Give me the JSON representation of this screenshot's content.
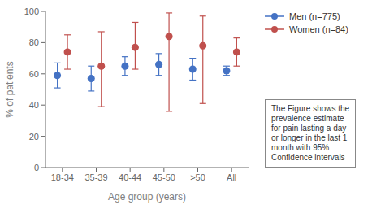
{
  "chart_data": {
    "type": "scatter",
    "categories": [
      "18-34",
      "35-39",
      "40-44",
      "45-50",
      ">50",
      "All"
    ],
    "xlabel": "Age group (years)",
    "ylabel": "% of patients",
    "ylim": [
      0,
      100
    ],
    "yticks": [
      0,
      20,
      40,
      60,
      80,
      100
    ],
    "grid": false,
    "legend": "right",
    "annotation": "The Figure shows the\nprevalence estimate\nfor pain lasting a day\nor longer in the last 1\nmonth with 95%\nConfidence intervals",
    "series": [
      {
        "name": "Men (n=775)",
        "color": "#4472C4",
        "marker": "circle",
        "values": [
          59,
          57,
          65,
          66,
          63,
          62
        ],
        "ci_low": [
          51,
          49,
          59,
          59,
          56,
          59
        ],
        "ci_high": [
          67,
          65,
          71,
          73,
          70,
          65
        ]
      },
      {
        "name": "Women (n=84)",
        "color": "#C0504D",
        "marker": "circle",
        "values": [
          74,
          65,
          77,
          84,
          78,
          74
        ],
        "ci_low": [
          63,
          39,
          63,
          36,
          41,
          65
        ],
        "ci_high": [
          85,
          87,
          93,
          99,
          97,
          83
        ]
      }
    ]
  }
}
